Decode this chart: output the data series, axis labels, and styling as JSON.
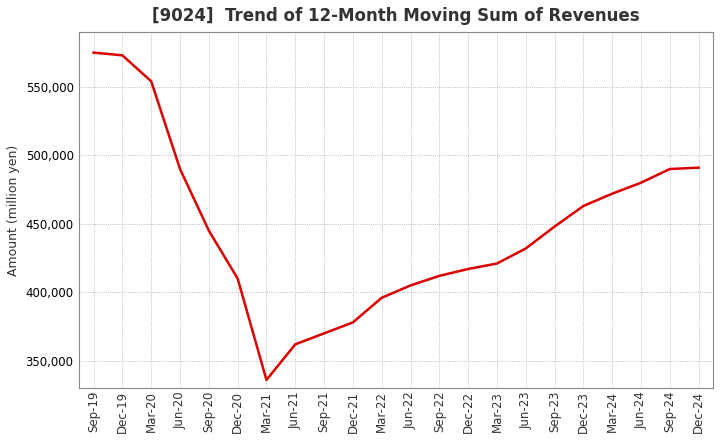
{
  "title": "[9024]  Trend of 12-Month Moving Sum of Revenues",
  "ylabel": "Amount (million yen)",
  "line_color": "#dd0000",
  "background_color": "#ffffff",
  "plot_bg_color": "#ffffff",
  "grid_color": "#aaaaaa",
  "x_labels": [
    "Sep-19",
    "Dec-19",
    "Mar-20",
    "Jun-20",
    "Sep-20",
    "Dec-20",
    "Mar-21",
    "Jun-21",
    "Sep-21",
    "Dec-21",
    "Mar-22",
    "Jun-22",
    "Sep-22",
    "Dec-22",
    "Mar-23",
    "Jun-23",
    "Sep-23",
    "Dec-23",
    "Mar-24",
    "Jun-24",
    "Sep-24",
    "Dec-24"
  ],
  "y_values": [
    575000,
    573000,
    554000,
    490000,
    445000,
    410000,
    336000,
    362000,
    370000,
    378000,
    396000,
    405000,
    412000,
    417000,
    421000,
    432000,
    448000,
    463000,
    472000,
    480000,
    490000,
    491000
  ],
  "ylim": [
    330000,
    590000
  ],
  "yticks": [
    350000,
    400000,
    450000,
    500000,
    550000
  ],
  "line_width": 1.8,
  "title_fontsize": 12,
  "title_color": "#333333",
  "tick_fontsize": 8.5,
  "ylabel_fontsize": 9
}
